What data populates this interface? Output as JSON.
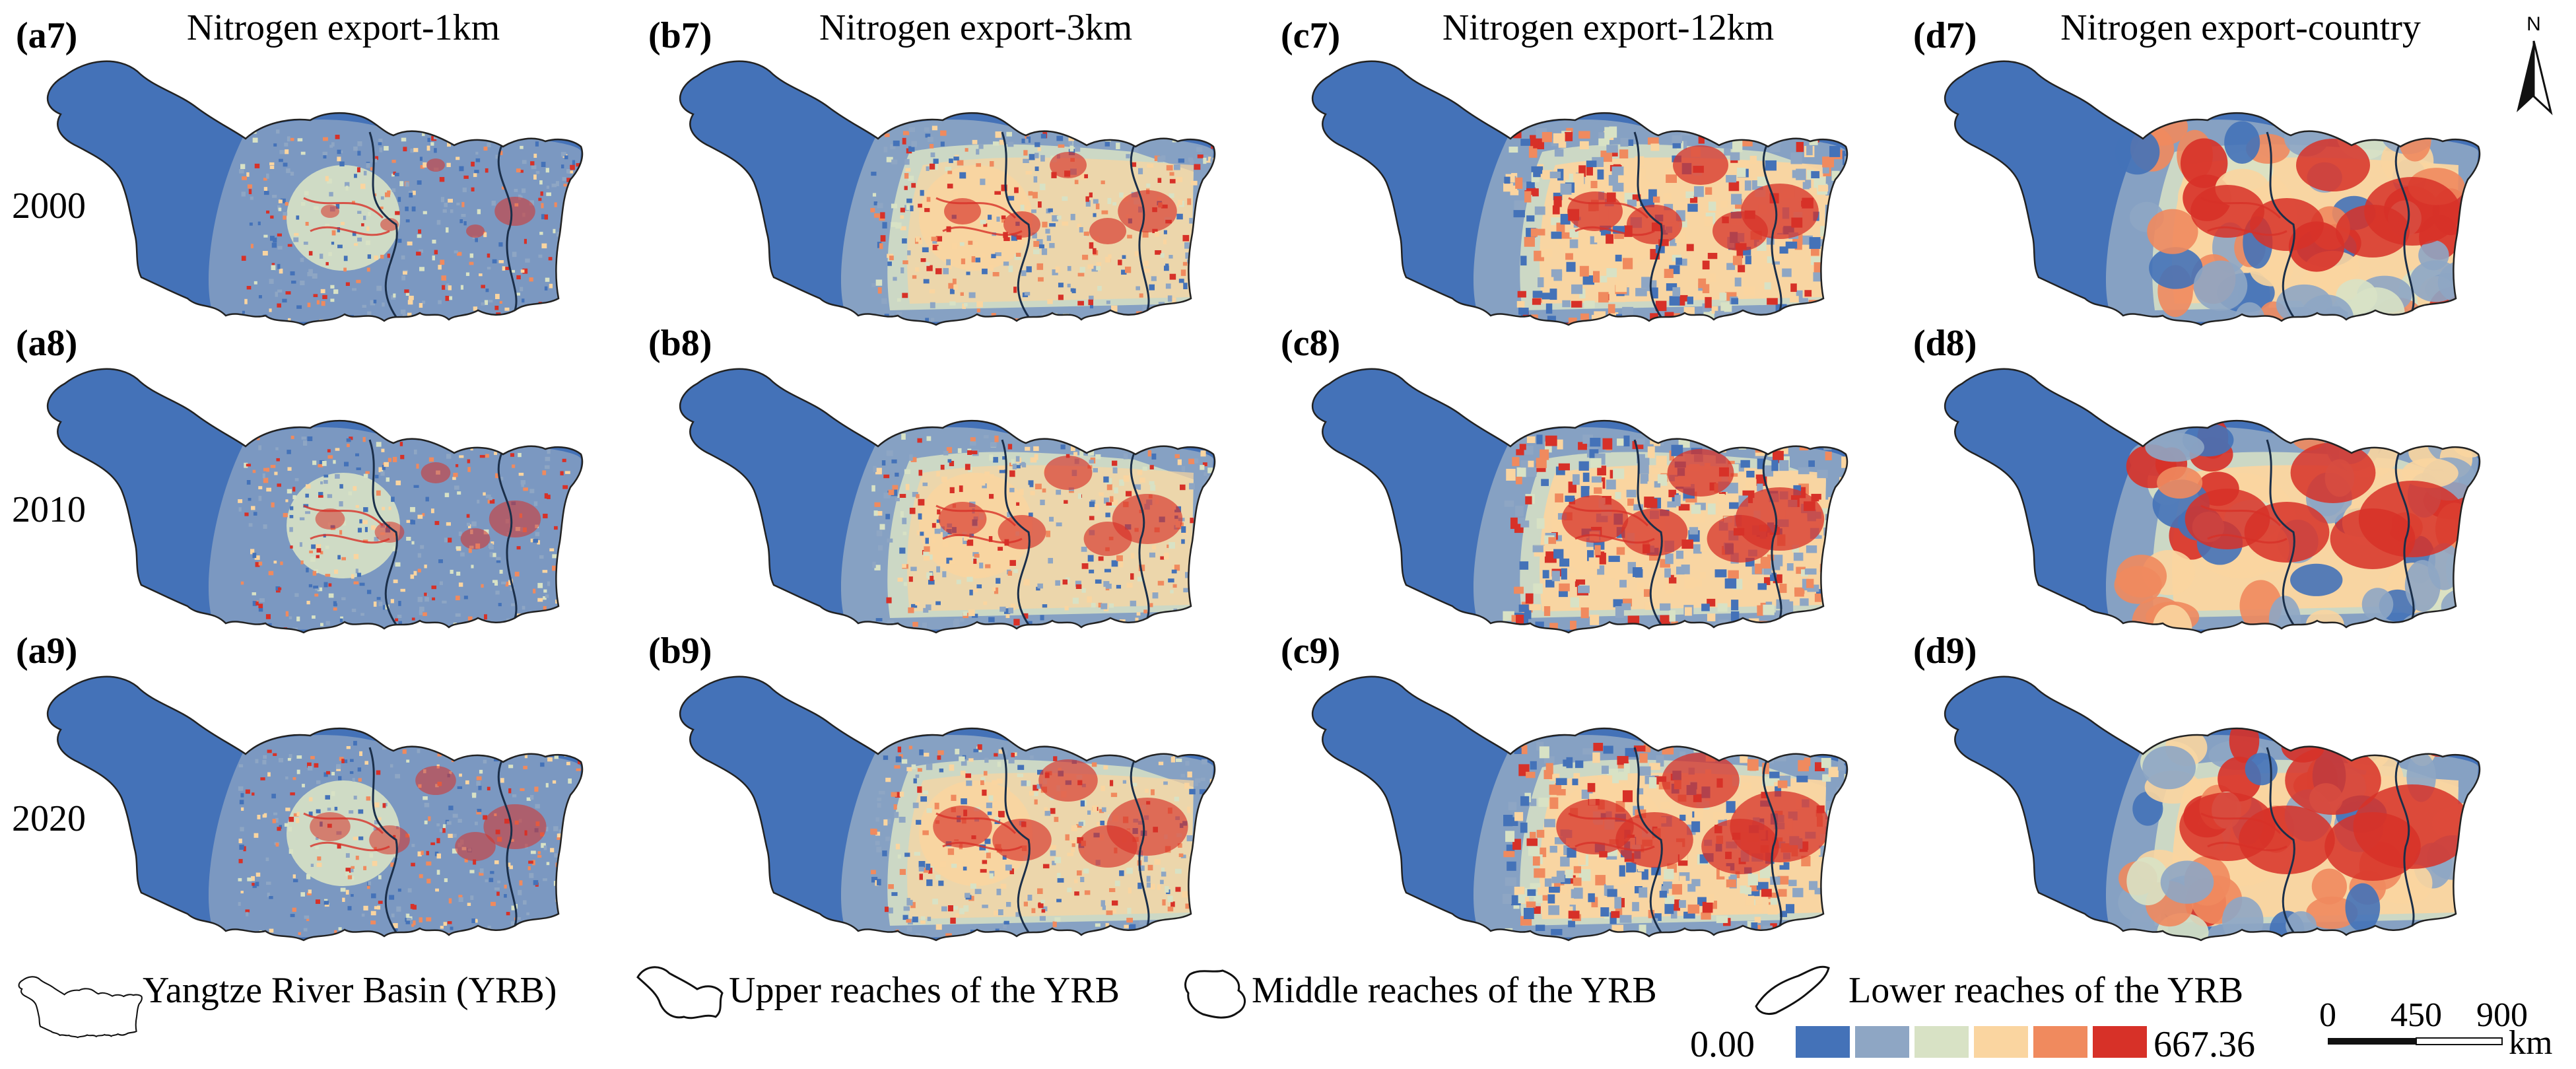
{
  "columns": [
    {
      "title": "Nitrogen export-1km"
    },
    {
      "title": "Nitrogen export-3km"
    },
    {
      "title": "Nitrogen export-12km"
    },
    {
      "title": "Nitrogen export-country"
    }
  ],
  "rows": [
    {
      "year": "2000",
      "labels": [
        "(a7)",
        "(b7)",
        "(c7)",
        "(d7)"
      ]
    },
    {
      "year": "2010",
      "labels": [
        "(a8)",
        "(b8)",
        "(c8)",
        "(d8)"
      ]
    },
    {
      "year": "2020",
      "labels": [
        "(a9)",
        "(b9)",
        "(c9)",
        "(d9)"
      ]
    }
  ],
  "north_arrow": {
    "label": "N"
  },
  "legend": {
    "regions": [
      {
        "label": "Yangtze River Basin (YRB)"
      },
      {
        "label": "Upper reaches of the YRB"
      },
      {
        "label": "Middle reaches of the YRB"
      },
      {
        "label": "Lower reaches of the YRB"
      }
    ],
    "colorbar": {
      "min_label": "0.00",
      "max_label": "667.36",
      "colors": [
        "#4472b8",
        "#8ea6c4",
        "#d8e2c5",
        "#fad5a0",
        "#f08a5e",
        "#d73128"
      ]
    }
  },
  "scale_bar": {
    "ticks": [
      "0",
      "450",
      "900"
    ],
    "unit": "km"
  },
  "map_palette": {
    "deep_blue": "#4472b8",
    "grey_blue": "#8ea6c4",
    "pale_green": "#d8e2c5",
    "light_orange": "#fad5a0",
    "orange": "#f08a5e",
    "red": "#d73128"
  }
}
